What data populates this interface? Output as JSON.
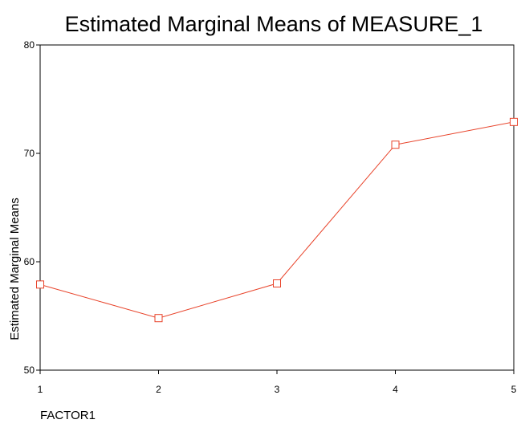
{
  "chart_data": {
    "type": "line",
    "title": "Estimated Marginal Means of MEASURE_1",
    "xlabel": "FACTOR1",
    "ylabel": "Estimated Marginal Means",
    "categories": [
      "1",
      "2",
      "3",
      "4",
      "5"
    ],
    "series": [
      {
        "values": [
          57.9,
          54.8,
          58.0,
          70.8,
          72.9
        ],
        "color": "#e8432a",
        "marker": "square"
      }
    ],
    "ylim": [
      50,
      80
    ],
    "yticks": [
      "50",
      "60",
      "70",
      "80"
    ],
    "grid": false,
    "legend": "none",
    "plot_frame_color": "#000000",
    "text_color": "#000000"
  }
}
